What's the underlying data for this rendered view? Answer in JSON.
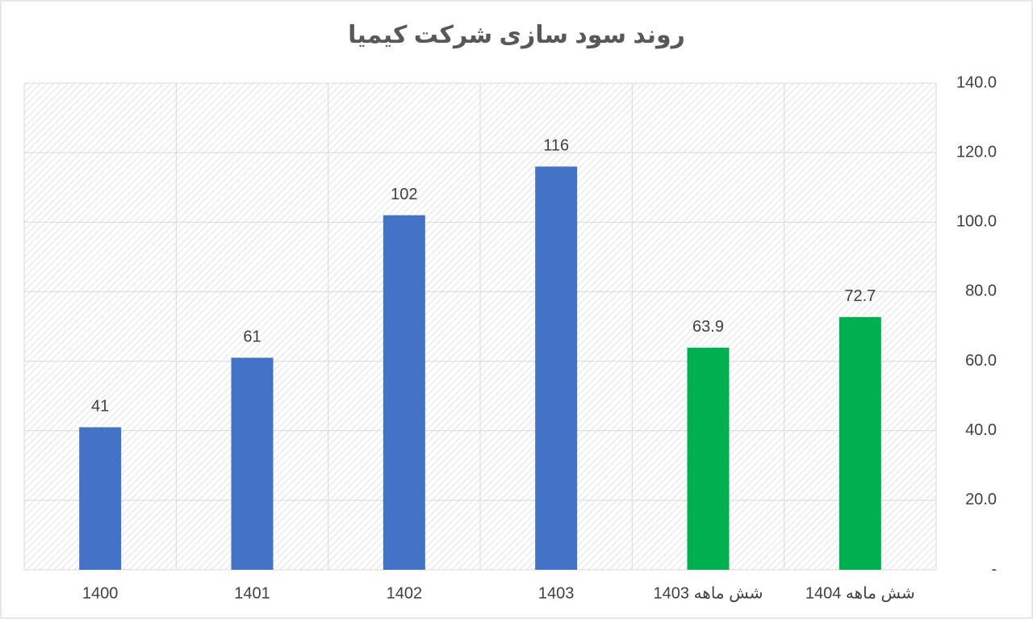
{
  "chart_data": {
    "type": "bar",
    "title": "روند سود سازی شرکت کیمیا",
    "categories": [
      "1400",
      "1401",
      "1402",
      "1403",
      "شش ماهه 1403",
      "شش ماهه 1404"
    ],
    "values": [
      41,
      61,
      102,
      116,
      63.9,
      72.7
    ],
    "colors": [
      "#4472c4",
      "#4472c4",
      "#4472c4",
      "#4472c4",
      "#00b050",
      "#00b050"
    ],
    "ylim": [
      0,
      140
    ],
    "yticks": [
      {
        "value": 0,
        "label": "-"
      },
      {
        "value": 20,
        "label": "20.0"
      },
      {
        "value": 40,
        "label": "40.0"
      },
      {
        "value": 60,
        "label": "60.0"
      },
      {
        "value": 80,
        "label": "80.0"
      },
      {
        "value": 100,
        "label": "100.0"
      },
      {
        "value": 120,
        "label": "120.0"
      },
      {
        "value": 140,
        "label": "140.0"
      }
    ],
    "grid": true
  }
}
